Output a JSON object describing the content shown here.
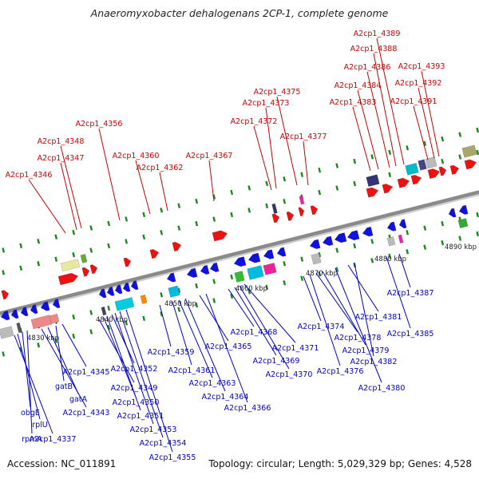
{
  "title": "Anaeromyxobacter dehalogenans 2CP-1, complete genome",
  "footer": {
    "accession": "Accession: NC_011891",
    "summary": "Topology: circular; Length: 5,029,329 bp; Genes: 4,528"
  },
  "colors": {
    "forward_label": "#cc0000",
    "reverse_label": "#0000cc",
    "forward_gene": "#ee1111",
    "reverse_gene": "#1111dd",
    "backbone": "#8a8a8a",
    "tick": "#1a8a1a"
  },
  "scale_labels": [
    "4830 kbp",
    "4840 kbp",
    "4850 kbp",
    "4860 kbp",
    "4870 kbp",
    "4880 kbp",
    "4890 kbp"
  ],
  "forward_labels": [
    "A2cp1_4346",
    "A2cp1_4347",
    "A2cp1_4348",
    "A2cp1_4356",
    "A2cp1_4360",
    "A2cp1_4362",
    "A2cp1_4367",
    "A2cp1_4372",
    "A2cp1_4373",
    "A2cp1_4375",
    "A2cp1_4377",
    "A2cp1_4383",
    "A2cp1_4384",
    "A2cp1_4386",
    "A2cp1_4388",
    "A2cp1_4389",
    "A2cp1_4391",
    "A2cp1_4392",
    "A2cp1_4393"
  ],
  "reverse_labels": [
    "A2cp1_4337",
    "rplU",
    "obgE",
    "rpmA",
    "A2cp1_4343",
    "gatA",
    "gatB",
    "A2cp1_4345",
    "A2cp1_4349",
    "A2cp1_4350",
    "A2cp1_4351",
    "A2cp1_4352",
    "A2cp1_4353",
    "A2cp1_4354",
    "A2cp1_4355",
    "A2cp1_4359",
    "A2cp1_4361",
    "A2cp1_4363",
    "A2cp1_4364",
    "A2cp1_4365",
    "A2cp1_4366",
    "A2cp1_4368",
    "A2cp1_4369",
    "A2cp1_4370",
    "A2cp1_4371",
    "A2cp1_4374",
    "A2cp1_4376",
    "A2cp1_4378",
    "A2cp1_4379",
    "A2cp1_4380",
    "A2cp1_4381",
    "A2cp1_4382",
    "A2cp1_4385",
    "A2cp1_4387"
  ]
}
